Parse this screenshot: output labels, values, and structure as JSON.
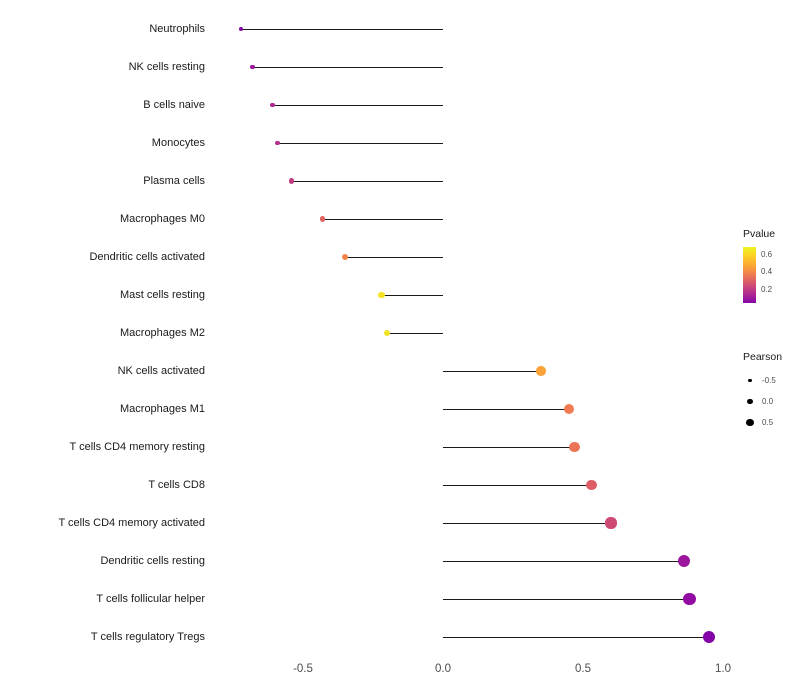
{
  "chart_data": {
    "type": "scatter",
    "subtype": "lollipop",
    "orientation": "horizontal",
    "title": "",
    "xlabel": "",
    "ylabel": "",
    "xlim": [
      -0.85,
      1.12
    ],
    "x_ticks": [
      -0.5,
      0.0,
      0.5,
      1.0
    ],
    "x_tick_labels": [
      "-0.5",
      "0.0",
      "0.5",
      "1.0"
    ],
    "grid": false,
    "legend_position": "right",
    "size_encoding": "Pearson",
    "color_encoding": "Pvalue",
    "points": [
      {
        "label": "Neutrophils",
        "pearson": -0.72,
        "pvalue": 0.03,
        "color": "#8405a7"
      },
      {
        "label": "NK cells resting",
        "pearson": -0.68,
        "pvalue": 0.08,
        "color": "#9c179e"
      },
      {
        "label": "B cells naive",
        "pearson": -0.61,
        "pvalue": 0.15,
        "color": "#ad2793"
      },
      {
        "label": "Monocytes",
        "pearson": -0.59,
        "pvalue": 0.18,
        "color": "#b52f8c"
      },
      {
        "label": "Plasma cells",
        "pearson": -0.54,
        "pvalue": 0.24,
        "color": "#c33d80"
      },
      {
        "label": "Macrophages M0",
        "pearson": -0.43,
        "pvalue": 0.4,
        "color": "#e06461"
      },
      {
        "label": "Dendritic cells activated",
        "pearson": -0.35,
        "pvalue": 0.5,
        "color": "#f1844b"
      },
      {
        "label": "Mast cells resting",
        "pearson": -0.22,
        "pvalue": 0.67,
        "color": "#f4e225"
      },
      {
        "label": "Macrophages M2",
        "pearson": -0.2,
        "pvalue": 0.66,
        "color": "#f2e326"
      },
      {
        "label": "NK cells activated",
        "pearson": 0.35,
        "pvalue": 0.55,
        "color": "#fba238"
      },
      {
        "label": "Macrophages M1",
        "pearson": 0.45,
        "pvalue": 0.47,
        "color": "#ee7b51"
      },
      {
        "label": "T cells CD4 memory resting",
        "pearson": 0.47,
        "pvalue": 0.45,
        "color": "#eb7457"
      },
      {
        "label": "T cells CD8",
        "pearson": 0.53,
        "pvalue": 0.37,
        "color": "#dd5e66"
      },
      {
        "label": "T cells CD4 memory activated",
        "pearson": 0.6,
        "pvalue": 0.3,
        "color": "#ce4a75"
      },
      {
        "label": "Dendritic cells resting",
        "pearson": 0.86,
        "pvalue": 0.07,
        "color": "#9c179e"
      },
      {
        "label": "T cells follicular helper",
        "pearson": 0.88,
        "pvalue": 0.05,
        "color": "#930ca3"
      },
      {
        "label": "T cells regulatory  Tregs",
        "pearson": 0.95,
        "pvalue": 0.02,
        "color": "#8405a7"
      }
    ]
  },
  "legend": {
    "pvalue": {
      "title": "Pvalue",
      "ticks": [
        {
          "label": "0.6",
          "pos": 0.14
        },
        {
          "label": "0.4",
          "pos": 0.45
        },
        {
          "label": "0.2",
          "pos": 0.77
        }
      ],
      "gradient_top_to_bottom": [
        "#f0f424",
        "#fcce25",
        "#fca636",
        "#ee7b51",
        "#d35171",
        "#b12a90",
        "#8405a7"
      ]
    },
    "pearson": {
      "title": "Pearson",
      "sizes": [
        {
          "label": "-0.5",
          "value": -0.5
        },
        {
          "label": "0.0",
          "value": 0.0
        },
        {
          "label": "0.5",
          "value": 0.5
        }
      ]
    }
  }
}
